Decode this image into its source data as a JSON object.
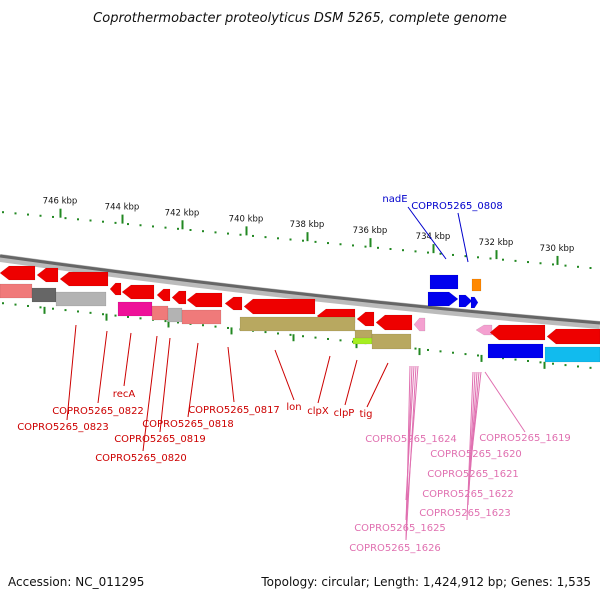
{
  "title": "Coprothermobacter proteolyticus DSM 5265, complete genome",
  "footer": {
    "accession": "Accession: NC_011295",
    "summary": "Topology: circular; Length: 1,424,912 bp; Genes: 1,535"
  },
  "colors": {
    "red": "#ee0000",
    "pink": "#f07a7a",
    "magenta": "#ee1199",
    "grey": "#b3b3b3",
    "dark_grey": "#666666",
    "olive": "#b8a860",
    "yellow_green": "#a6ee22",
    "blue": "#0000ee",
    "light_blue": "#11bbee",
    "orange": "#ff8800",
    "light_pink": "#f4a0d0",
    "tick_green": "#228822",
    "label_red": "#cc0000",
    "label_blue": "#0000cc",
    "label_pink": "#e070b0"
  },
  "ticks": [
    {
      "label": "746 kbp"
    },
    {
      "label": "744 kbp"
    },
    {
      "label": "742 kbp"
    },
    {
      "label": "740 kbp"
    },
    {
      "label": "738 kbp"
    },
    {
      "label": "736 kbp"
    },
    {
      "label": "734 kbp"
    },
    {
      "label": "732 kbp"
    },
    {
      "label": "730 kbp"
    }
  ],
  "labels": {
    "top_blue": [
      "nadE",
      "COPRO5265_0808"
    ],
    "bottom_red": [
      "recA",
      "COPRO5265_0822",
      "COPRO5265_0823",
      "COPRO5265_0818",
      "COPRO5265_0819",
      "COPRO5265_0820",
      "COPRO5265_0817",
      "lon",
      "clpX",
      "clpP",
      "tig"
    ],
    "bottom_pink": [
      "COPRO5265_1624",
      "COPRO5265_1625",
      "COPRO5265_1626",
      "COPRO5265_1619",
      "COPRO5265_1620",
      "COPRO5265_1621",
      "COPRO5265_1622",
      "COPRO5265_1623"
    ]
  }
}
